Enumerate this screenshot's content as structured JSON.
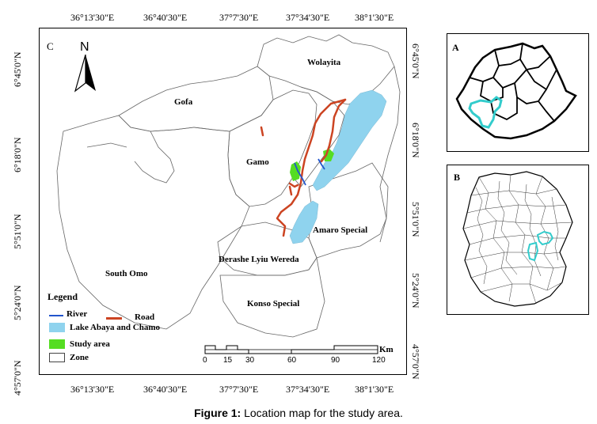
{
  "main_map": {
    "panel_label": "C",
    "north_label": "N",
    "top_coords": [
      "36°13'30\"E",
      "36°40'30\"E",
      "37°7'30\"E",
      "37°34'30\"E",
      "38°1'30\"E"
    ],
    "bottom_coords": [
      "36°13'30\"E",
      "36°40'30\"E",
      "37°7'30\"E",
      "37°34'30\"E",
      "38°1'30\"E"
    ],
    "left_coords": [
      "6°45'0\"N",
      "6°18'0\"N",
      "5°51'0\"N",
      "5°24'0\"N",
      "4°57'0\"N"
    ],
    "right_coords": [
      "6°45'0\"N",
      "6°18'0\"N",
      "5°51'0\"N",
      "5°24'0\"N",
      "4°57'0\"N"
    ],
    "zones": {
      "wolayita": "Wolayita",
      "gofa": "Gofa",
      "gamo": "Gamo",
      "amaro": "Amaro Special",
      "south_omo": "South Omo",
      "derashe": "Derashe Lyiu Wereda",
      "konso": "Konso Special"
    },
    "legend": {
      "title": "Legend",
      "river": "River",
      "road": "Road",
      "lake": "Lake Abaya and Chamo",
      "study_area": "Study area",
      "zone": "Zone"
    },
    "scale": {
      "unit": "Km",
      "ticks": [
        "0",
        "15",
        "30",
        "60",
        "90",
        "120"
      ]
    }
  },
  "inset_a": {
    "panel_label": "A"
  },
  "inset_b": {
    "panel_label": "B"
  },
  "caption": {
    "bold": "Figure 1:",
    "text": " Location map for the study area."
  },
  "colors": {
    "river": "#2255cc",
    "road": "#cc4422",
    "lake": "#8fd3ee",
    "study_area": "#55dd22",
    "inset_highlight": "#33cccc"
  }
}
